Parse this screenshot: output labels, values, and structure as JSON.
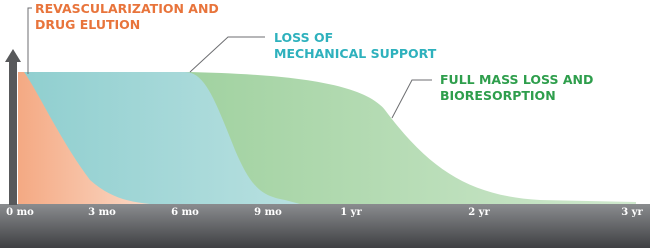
{
  "annotations": [
    {
      "lines": [
        "REVASCULARIZATION AND",
        "DRUG ELUTION"
      ]
    },
    {
      "lines": [
        "LOSS OF",
        "MECHANICAL SUPPORT"
      ]
    },
    {
      "lines": [
        "FULL MASS LOSS AND",
        "BIORESORPTION"
      ]
    }
  ],
  "axis": {
    "labels": [
      "0 mo",
      "3 mo",
      "6 mo",
      "9 mo",
      "1 yr",
      "2 yr",
      "3 yr"
    ]
  }
}
